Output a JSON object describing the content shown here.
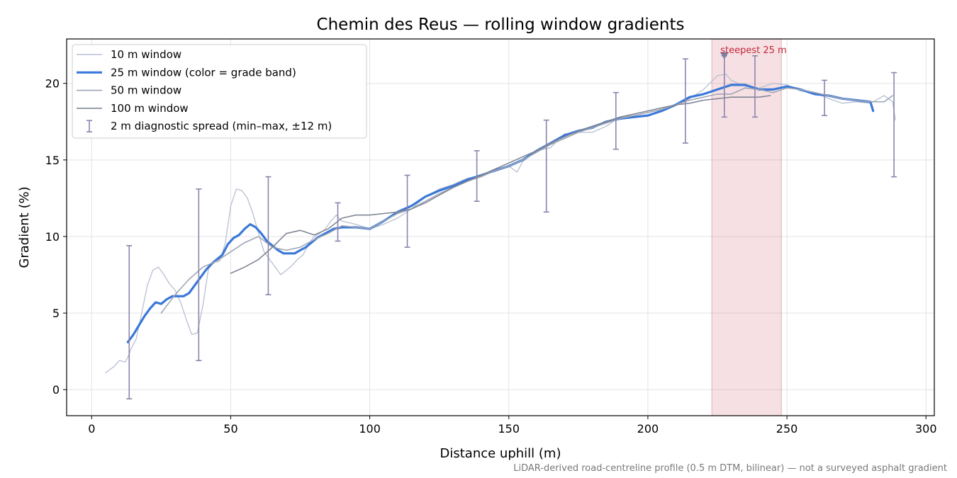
{
  "chart_data": {
    "type": "line",
    "title": "Chemin des Reus — rolling window gradients",
    "xlabel": "Distance uphill (m)",
    "ylabel": "Gradient (%)",
    "xlim": [
      -9,
      303
    ],
    "ylim": [
      -1.7,
      22.9
    ],
    "xticks": [
      0,
      50,
      100,
      150,
      200,
      250,
      300
    ],
    "yticks": [
      0,
      5,
      10,
      15,
      20
    ],
    "grid": true,
    "legend_position": "top-left",
    "footnote": "LiDAR-derived road-centreline profile (0.5 m DTM, bilinear) — not a surveyed asphalt gradient",
    "highlight": {
      "label": "steepest 25 m",
      "x_start": 223,
      "x_end": 248,
      "marker_x": 227.5,
      "color": "#d9747f"
    },
    "series": [
      {
        "name": "10 m window",
        "kind": "line",
        "color": "#b7bfd0",
        "width": 1.3,
        "x": [
          5,
          8,
          10,
          12,
          13,
          14,
          16,
          18,
          20,
          22,
          24,
          26,
          28,
          30,
          32,
          34,
          36,
          38,
          40,
          42,
          44,
          46,
          48,
          50,
          52,
          54,
          56,
          58,
          60,
          62,
          64,
          66,
          68,
          70,
          72,
          74,
          76,
          78,
          80,
          82,
          84,
          86,
          88,
          90,
          95,
          100,
          105,
          110,
          115,
          120,
          125,
          130,
          135,
          140,
          145,
          150,
          153,
          155,
          158,
          160,
          165,
          170,
          175,
          180,
          185,
          190,
          195,
          200,
          205,
          210,
          215,
          220,
          225,
          228,
          230,
          235,
          240,
          245,
          250,
          255,
          260,
          265,
          270,
          275,
          280,
          285,
          288,
          289
        ],
        "y": [
          1.1,
          1.5,
          1.9,
          1.8,
          2.1,
          2.6,
          3.3,
          5.0,
          6.8,
          7.8,
          8.0,
          7.5,
          6.9,
          6.5,
          5.7,
          4.6,
          3.6,
          3.7,
          5.5,
          7.9,
          8.3,
          8.4,
          9.5,
          12.0,
          13.1,
          13.0,
          12.5,
          11.5,
          10.2,
          9.0,
          8.5,
          8.0,
          7.5,
          7.8,
          8.1,
          8.5,
          8.8,
          9.5,
          10.0,
          10.2,
          10.5,
          11.0,
          11.4,
          11.0,
          10.8,
          10.5,
          10.8,
          11.2,
          11.8,
          12.6,
          13.1,
          13.4,
          13.8,
          14.0,
          14.4,
          14.6,
          14.2,
          14.9,
          15.3,
          15.6,
          15.8,
          16.7,
          16.8,
          16.8,
          17.2,
          17.8,
          17.9,
          18.1,
          18.3,
          18.6,
          19.0,
          19.6,
          20.5,
          20.6,
          20.2,
          19.8,
          19.7,
          20.0,
          19.9,
          19.5,
          19.4,
          19.0,
          18.7,
          18.8,
          18.7,
          19.2,
          18.8,
          17.6
        ]
      },
      {
        "name": "25 m window (color = grade band)",
        "kind": "line",
        "color": "#3a78d8",
        "width": 3.2,
        "x": [
          13,
          15,
          17,
          19,
          21,
          23,
          25,
          27,
          29,
          31,
          33,
          35,
          37,
          39,
          41,
          43,
          45,
          47,
          49,
          51,
          53,
          55,
          57,
          59,
          61,
          63,
          65,
          67,
          69,
          71,
          73,
          75,
          77,
          79,
          81,
          83,
          85,
          87,
          90,
          95,
          100,
          105,
          110,
          115,
          120,
          125,
          130,
          135,
          140,
          145,
          150,
          155,
          160,
          165,
          170,
          175,
          180,
          185,
          190,
          195,
          200,
          205,
          210,
          215,
          220,
          225,
          230,
          235,
          240,
          245,
          250,
          255,
          260,
          265,
          270,
          275,
          280,
          281
        ],
        "y": [
          3.1,
          3.6,
          4.2,
          4.8,
          5.3,
          5.7,
          5.6,
          5.9,
          6.1,
          6.1,
          6.1,
          6.3,
          6.8,
          7.3,
          7.8,
          8.2,
          8.5,
          8.8,
          9.5,
          9.9,
          10.1,
          10.5,
          10.8,
          10.6,
          10.2,
          9.7,
          9.4,
          9.1,
          8.9,
          8.9,
          8.9,
          9.1,
          9.3,
          9.6,
          9.9,
          10.1,
          10.3,
          10.5,
          10.6,
          10.6,
          10.5,
          11.0,
          11.6,
          12.0,
          12.6,
          13.0,
          13.3,
          13.7,
          14.0,
          14.3,
          14.6,
          15.0,
          15.6,
          16.1,
          16.6,
          16.9,
          17.1,
          17.5,
          17.7,
          17.8,
          17.9,
          18.2,
          18.6,
          19.1,
          19.3,
          19.6,
          19.9,
          19.9,
          19.6,
          19.6,
          19.8,
          19.6,
          19.3,
          19.2,
          19.0,
          18.9,
          18.8,
          18.2
        ]
      },
      {
        "name": "50 m window",
        "kind": "line",
        "color": "#9ea6b6",
        "width": 1.6,
        "x": [
          25,
          30,
          35,
          40,
          45,
          50,
          55,
          60,
          65,
          70,
          75,
          80,
          85,
          90,
          95,
          100,
          105,
          110,
          115,
          120,
          125,
          130,
          135,
          140,
          145,
          150,
          155,
          160,
          165,
          170,
          175,
          180,
          185,
          190,
          195,
          200,
          205,
          210,
          215,
          220,
          225,
          230,
          235,
          240,
          245,
          250,
          255,
          260,
          265,
          270,
          275,
          280,
          285,
          288
        ],
        "y": [
          5.0,
          6.2,
          7.2,
          8.0,
          8.4,
          9.0,
          9.6,
          10.0,
          9.3,
          9.1,
          9.3,
          9.8,
          10.2,
          10.7,
          10.6,
          10.5,
          11.0,
          11.5,
          11.8,
          12.3,
          12.8,
          13.2,
          13.6,
          13.9,
          14.3,
          14.6,
          15.0,
          15.5,
          16.0,
          16.4,
          16.8,
          17.1,
          17.4,
          17.7,
          17.9,
          18.1,
          18.3,
          18.6,
          18.9,
          19.1,
          19.3,
          19.3,
          19.7,
          19.6,
          19.4,
          19.7,
          19.6,
          19.4,
          19.2,
          19.0,
          18.9,
          18.8,
          18.8,
          19.2
        ]
      },
      {
        "name": "100 m window",
        "kind": "line",
        "color": "#818695",
        "width": 1.6,
        "x": [
          50,
          55,
          60,
          65,
          70,
          75,
          80,
          85,
          90,
          95,
          100,
          105,
          110,
          115,
          120,
          125,
          130,
          135,
          140,
          145,
          150,
          155,
          160,
          165,
          170,
          175,
          180,
          185,
          190,
          195,
          200,
          205,
          210,
          215,
          220,
          225,
          230,
          235,
          240,
          244
        ],
        "y": [
          7.6,
          8.0,
          8.5,
          9.3,
          10.2,
          10.4,
          10.1,
          10.5,
          11.2,
          11.4,
          11.4,
          11.5,
          11.6,
          11.8,
          12.2,
          12.7,
          13.2,
          13.6,
          14.0,
          14.4,
          14.8,
          15.2,
          15.6,
          16.1,
          16.5,
          16.9,
          17.2,
          17.5,
          17.8,
          18.0,
          18.2,
          18.4,
          18.6,
          18.7,
          18.9,
          19.0,
          19.1,
          19.1,
          19.1,
          19.2
        ]
      },
      {
        "name": "2 m diagnostic spread (min–max, ±12 m)",
        "kind": "errorbar",
        "color": "#8a86ad",
        "x": [
          13.5,
          38.5,
          63.5,
          88.5,
          113.5,
          138.5,
          163.5,
          188.5,
          213.5,
          238.5,
          263.5,
          288.5,
          227.5
        ],
        "low": [
          -0.6,
          1.9,
          6.2,
          9.7,
          9.3,
          12.3,
          11.6,
          15.7,
          16.1,
          17.8,
          17.9,
          13.9,
          17.8
        ],
        "high": [
          9.4,
          13.1,
          13.9,
          12.2,
          14.0,
          15.6,
          17.6,
          19.4,
          21.6,
          21.8,
          20.2,
          20.7,
          21.8
        ]
      }
    ]
  }
}
